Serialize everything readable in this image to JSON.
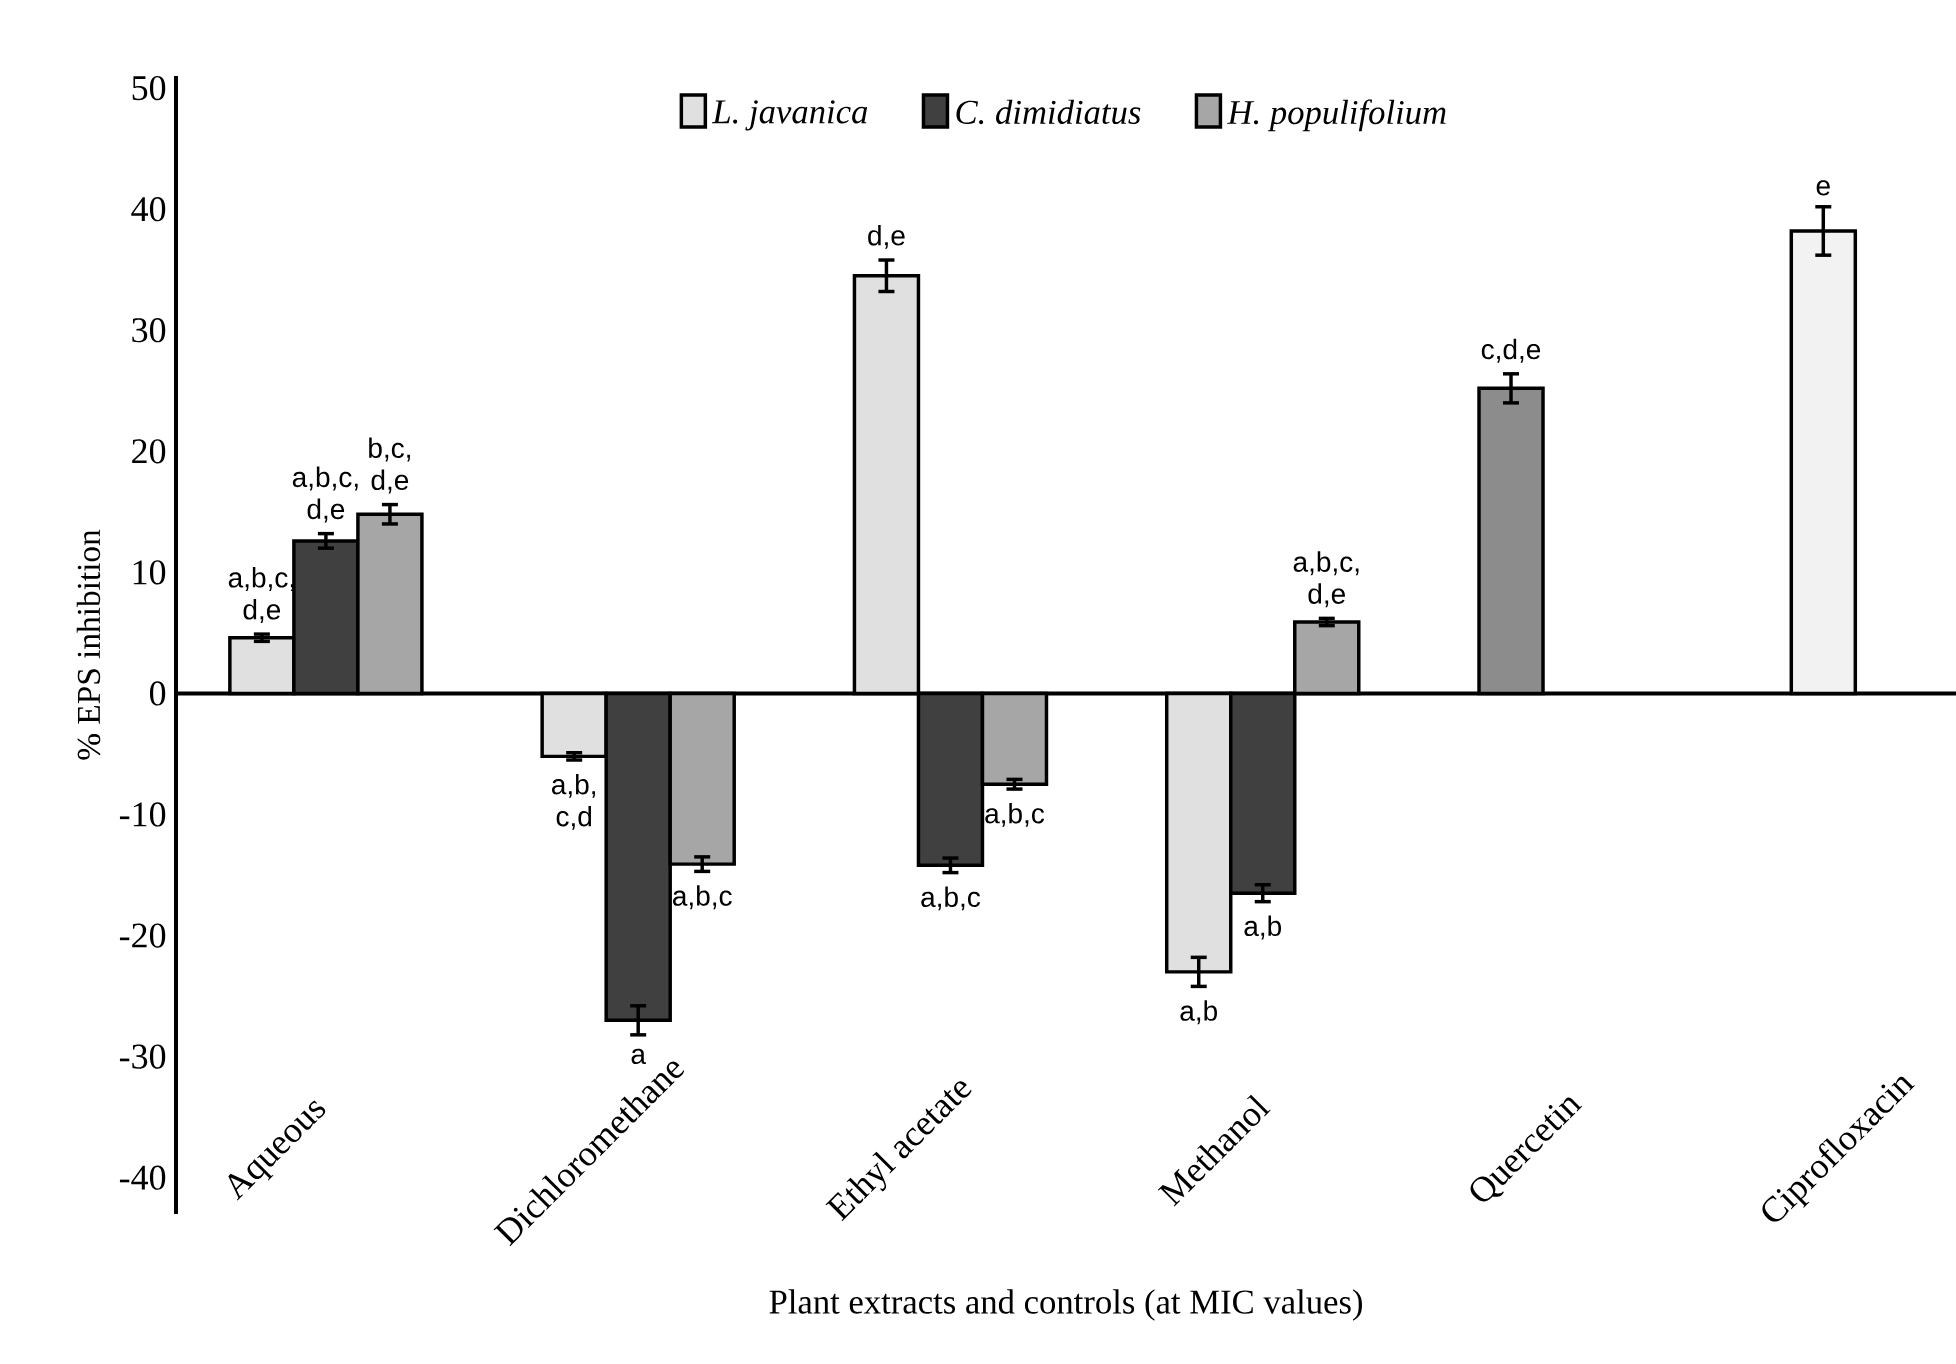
{
  "chart_data": {
    "type": "bar",
    "xlabel": "Plant extracts and controls (at MIC values)",
    "ylabel": "% EPS inhibition",
    "categories": [
      "Aqueous",
      "Dichloromethane",
      "Ethyl acetate",
      "Methanol",
      "Quercetin",
      "Ciprofloxacin"
    ],
    "ylim": [
      -43,
      51
    ],
    "yticks": [
      -40,
      -30,
      -20,
      -10,
      0,
      10,
      20,
      30,
      40,
      50
    ],
    "legend": "top",
    "series": [
      {
        "name": "*L. javanica*",
        "color": "#e0e0e0",
        "values": [
          4.6,
          -5.2,
          34.5,
          -23,
          null,
          null
        ],
        "errors": [
          0.3,
          0.3,
          1.3,
          1.2,
          null,
          null
        ],
        "value_labels": [
          "a,b,c, d,e",
          "a,b, c,d",
          "d,e",
          "a,b",
          null,
          null
        ]
      },
      {
        "name": "*C. dimidiatus*",
        "color": "#404040",
        "values": [
          12.6,
          -27,
          -14.2,
          -16.5,
          null,
          null
        ],
        "errors": [
          0.6,
          1.2,
          0.6,
          0.7,
          null,
          null
        ],
        "value_labels": [
          "a,b,c, d,e",
          "a",
          "a,b,c",
          "a,b",
          null,
          null
        ]
      },
      {
        "name": "*H. populifolium*",
        "color": "#a6a6a6",
        "values": [
          14.8,
          -14.1,
          -7.5,
          5.9,
          null,
          null
        ],
        "errors": [
          0.8,
          0.6,
          0.4,
          0.3,
          null,
          null
        ],
        "value_labels": [
          "b,c, d,e",
          "a,b,c",
          "a,b,c",
          "a,b,c, d,e",
          null,
          null
        ]
      },
      {
        "color": "#8c8c8c",
        "values": [
          null,
          null,
          null,
          null,
          25.2,
          null
        ],
        "errors": [
          null,
          null,
          null,
          null,
          1.2,
          null
        ],
        "value_labels": [
          null,
          null,
          null,
          null,
          "c,d,e",
          null
        ]
      },
      {
        "color": "#f2f2f2",
        "values": [
          null,
          null,
          null,
          null,
          null,
          38.2
        ],
        "errors": [
          null,
          null,
          null,
          null,
          null,
          2.0
        ],
        "value_labels": [
          null,
          null,
          null,
          null,
          null,
          "e"
        ]
      }
    ]
  }
}
